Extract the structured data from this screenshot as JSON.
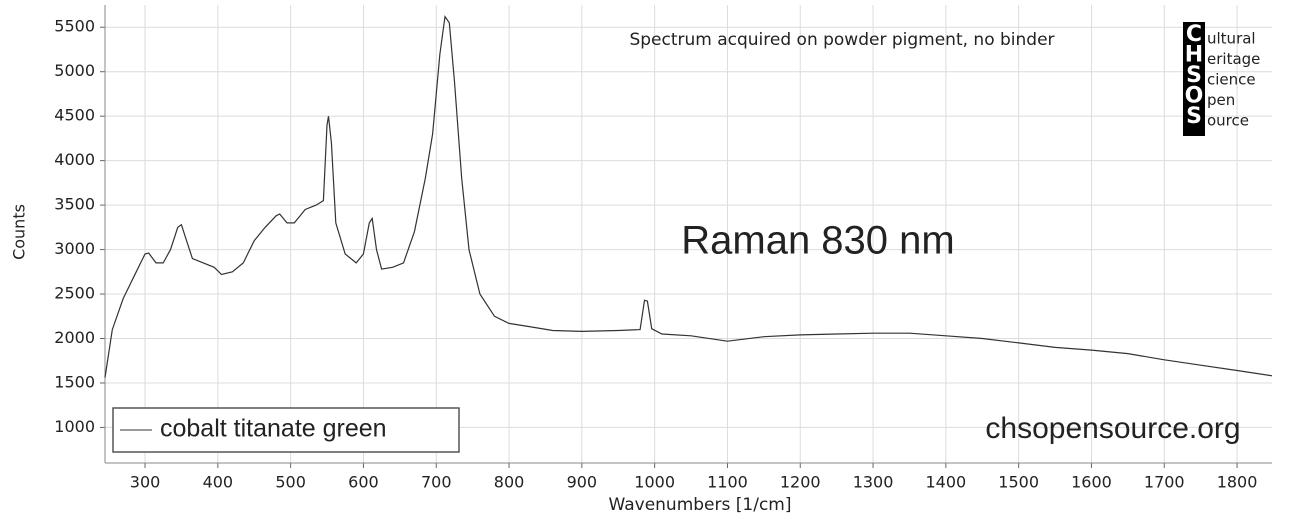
{
  "chart_data": {
    "type": "line",
    "subtitle": "Spectrum acquired on powder pigment, no binder",
    "annotation": "Raman 830 nm",
    "website": "chsopensource.org",
    "logo_letters": [
      "C",
      "H",
      "S",
      "O",
      "S"
    ],
    "logo_words": [
      "ultural",
      "eritage",
      "cience",
      "pen",
      "ource"
    ],
    "x_label": "Wavenumbers [1/cm]",
    "y_label": "Counts",
    "x": [
      245,
      255,
      270,
      285,
      300,
      305,
      315,
      325,
      335,
      345,
      350,
      355,
      365,
      380,
      395,
      405,
      420,
      435,
      450,
      465,
      480,
      485,
      495,
      505,
      520,
      535,
      545,
      550,
      552,
      556,
      562,
      575,
      590,
      600,
      608,
      612,
      618,
      625,
      640,
      655,
      670,
      685,
      695,
      705,
      712,
      718,
      725,
      735,
      745,
      760,
      780,
      800,
      830,
      860,
      900,
      950,
      980,
      986,
      990,
      996,
      1010,
      1050,
      1100,
      1150,
      1200,
      1250,
      1300,
      1350,
      1400,
      1450,
      1500,
      1550,
      1600,
      1650,
      1700,
      1750,
      1800,
      1848
    ],
    "series": [
      {
        "name": "cobalt titanate green",
        "color": "#333333",
        "values": [
          1560,
          2100,
          2450,
          2700,
          2950,
          2960,
          2850,
          2850,
          3000,
          3250,
          3280,
          3150,
          2900,
          2850,
          2800,
          2720,
          2750,
          2850,
          3100,
          3250,
          3380,
          3400,
          3300,
          3300,
          3450,
          3500,
          3550,
          4400,
          4500,
          4200,
          3300,
          2950,
          2850,
          2950,
          3300,
          3350,
          3000,
          2780,
          2800,
          2850,
          3200,
          3800,
          4300,
          5200,
          5620,
          5550,
          4900,
          3800,
          3000,
          2500,
          2250,
          2170,
          2130,
          2090,
          2080,
          2090,
          2100,
          2430,
          2420,
          2110,
          2050,
          2030,
          1970,
          2020,
          2040,
          2050,
          2060,
          2060,
          2030,
          2000,
          1950,
          1900,
          1870,
          1830,
          1760,
          1700,
          1640,
          1580
        ]
      }
    ],
    "xlim": [
      245,
      1848
    ],
    "ylim": [
      600,
      5750
    ],
    "xticks": [
      300,
      400,
      500,
      600,
      700,
      800,
      900,
      1000,
      1100,
      1200,
      1300,
      1400,
      1500,
      1600,
      1700,
      1800
    ],
    "yticks": [
      1000,
      1500,
      2000,
      2500,
      3000,
      3500,
      4000,
      4500,
      5000,
      5500
    ],
    "grid": true
  }
}
